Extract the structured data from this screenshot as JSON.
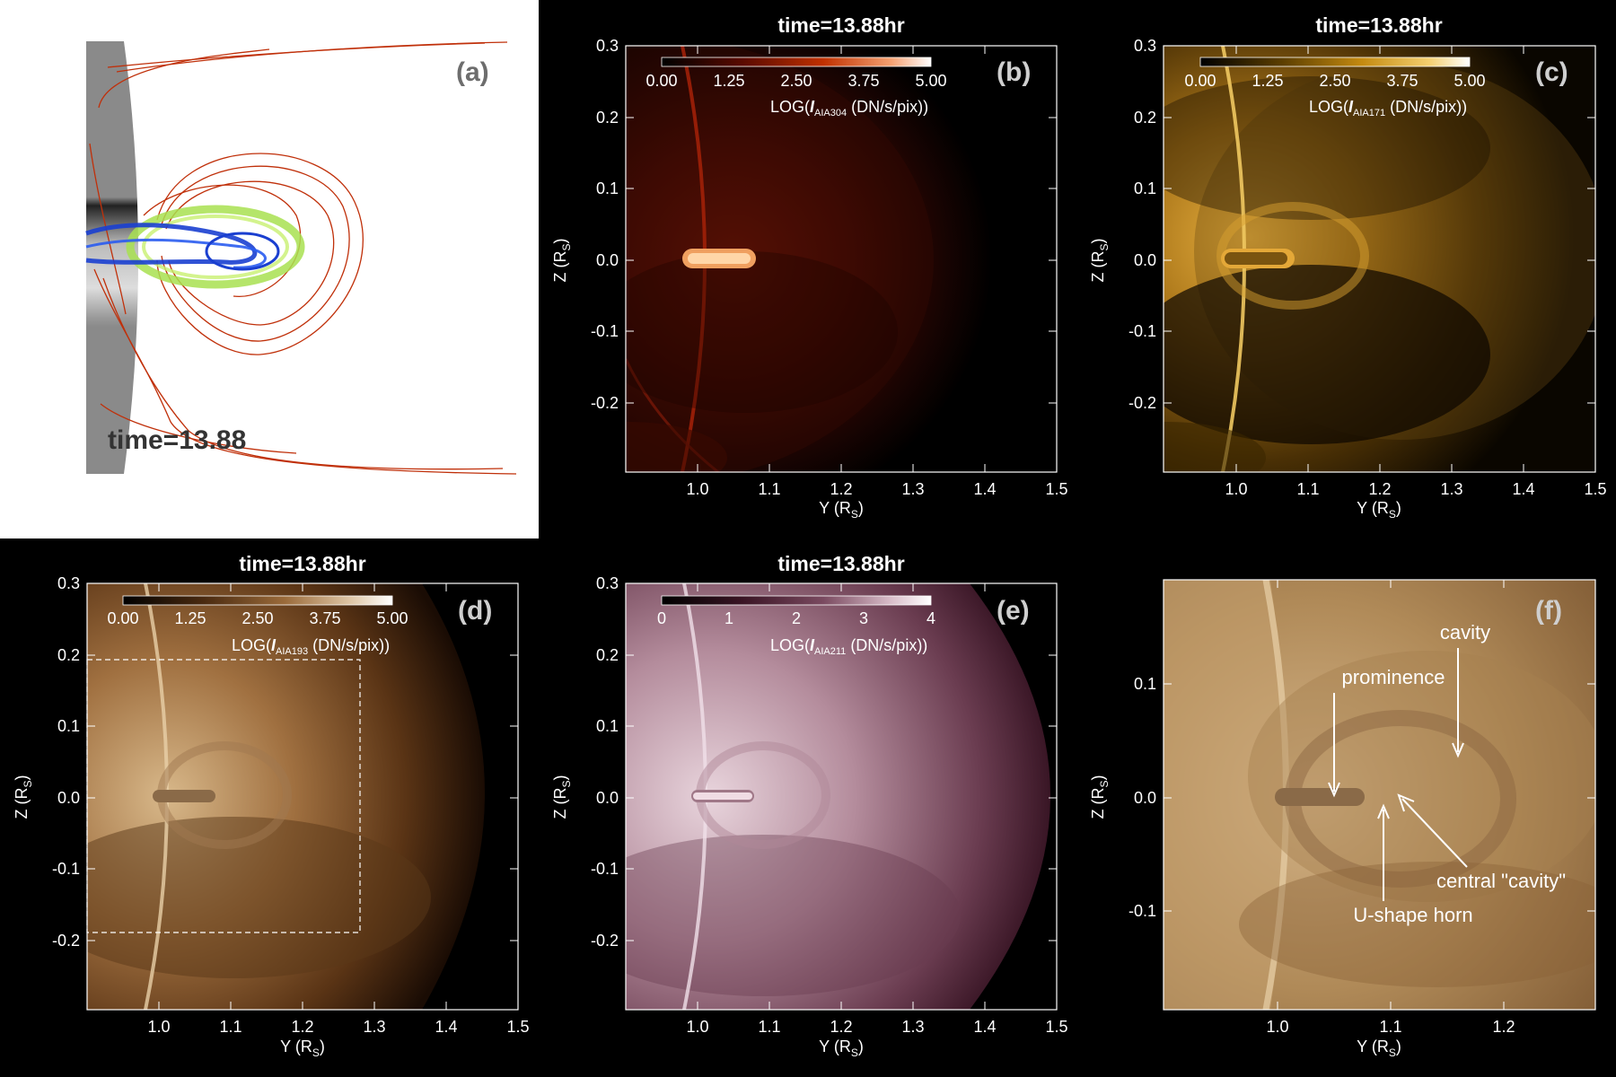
{
  "figure": {
    "panels": [
      {
        "id": "a",
        "letter": "(a)",
        "time_label": "time=13.88"
      },
      {
        "id": "b",
        "letter": "(b)",
        "title": "time=13.88hr",
        "xlabel": "Y (R",
        "xlabel_sub": "S",
        "xlabel_end": ")",
        "ylabel": "Z (R",
        "ylabel_sub": "S",
        "ylabel_end": ")",
        "xticks": [
          "1.0",
          "1.1",
          "1.2",
          "1.3",
          "1.4",
          "1.5"
        ],
        "yticks": [
          "0.3",
          "0.2",
          "0.1",
          "0.0",
          "-0.1",
          "-0.2"
        ],
        "colorbar": {
          "ticks": [
            "0.00",
            "1.25",
            "2.50",
            "3.75",
            "5.00"
          ],
          "label_prefix": "LOG(",
          "label_var": "I",
          "label_sub": "AIA304",
          "label_suffix": " (DN/s/pix))",
          "colors": [
            "#000000",
            "#5a0a00",
            "#b22000",
            "#f07a30",
            "#ffffff"
          ]
        }
      },
      {
        "id": "c",
        "letter": "(c)",
        "title": "time=13.88hr",
        "xlabel": "Y (R",
        "xlabel_sub": "S",
        "xlabel_end": ")",
        "ylabel": "Z (R",
        "ylabel_sub": "S",
        "ylabel_end": ")",
        "xticks": [
          "1.0",
          "1.1",
          "1.2",
          "1.3",
          "1.4",
          "1.5"
        ],
        "yticks": [
          "0.3",
          "0.2",
          "0.1",
          "0.0",
          "-0.1",
          "-0.2"
        ],
        "colorbar": {
          "ticks": [
            "0.00",
            "1.25",
            "2.50",
            "3.75",
            "5.00"
          ],
          "label_prefix": "LOG(",
          "label_var": "I",
          "label_sub": "AIA171",
          "label_suffix": " (DN/s/pix))",
          "colors": [
            "#000000",
            "#5a3d00",
            "#c48a10",
            "#f2c040",
            "#ffffff"
          ]
        }
      },
      {
        "id": "d",
        "letter": "(d)",
        "title": "time=13.88hr",
        "xlabel": "Y (R",
        "xlabel_sub": "S",
        "xlabel_end": ")",
        "ylabel": "Z (R",
        "ylabel_sub": "S",
        "ylabel_end": ")",
        "xticks": [
          "1.0",
          "1.1",
          "1.2",
          "1.3",
          "1.4",
          "1.5"
        ],
        "yticks": [
          "0.3",
          "0.2",
          "0.1",
          "0.0",
          "-0.1",
          "-0.2"
        ],
        "colorbar": {
          "ticks": [
            "0.00",
            "1.25",
            "2.50",
            "3.75",
            "5.00"
          ],
          "label_prefix": "LOG(",
          "label_var": "I",
          "label_sub": "AIA193",
          "label_suffix": " (DN/s/pix))",
          "colors": [
            "#000000",
            "#4a2a10",
            "#9a6a3a",
            "#d8b88a",
            "#ffffff"
          ]
        }
      },
      {
        "id": "e",
        "letter": "(e)",
        "title": "time=13.88hr",
        "xlabel": "Y (R",
        "xlabel_sub": "S",
        "xlabel_end": ")",
        "ylabel": "Z (R",
        "ylabel_sub": "S",
        "ylabel_end": ")",
        "xticks": [
          "1.0",
          "1.1",
          "1.2",
          "1.3",
          "1.4",
          "1.5"
        ],
        "yticks": [
          "0.3",
          "0.2",
          "0.1",
          "0.0",
          "-0.1",
          "-0.2"
        ],
        "colorbar": {
          "ticks": [
            "0",
            "1",
            "2",
            "3",
            "4"
          ],
          "label_prefix": "LOG(",
          "label_var": "I",
          "label_sub": "AIA211",
          "label_suffix": " (DN/s/pix))",
          "colors": [
            "#000000",
            "#3a1424",
            "#7a4a60",
            "#c8a0b4",
            "#ffffff"
          ]
        }
      },
      {
        "id": "f",
        "letter": "(f)",
        "xlabel": "Y (R",
        "xlabel_sub": "S",
        "xlabel_end": ")",
        "ylabel": "Z (R",
        "ylabel_sub": "S",
        "ylabel_end": ")",
        "xticks": [
          "1.0",
          "1.1",
          "1.2"
        ],
        "yticks": [
          "0.1",
          "0.0",
          "-0.1"
        ],
        "annotations": {
          "cavity": "cavity",
          "prominence": "prominence",
          "central_cavity": "central \"cavity\"",
          "u_shape_horn": "U-shape horn"
        }
      }
    ]
  }
}
